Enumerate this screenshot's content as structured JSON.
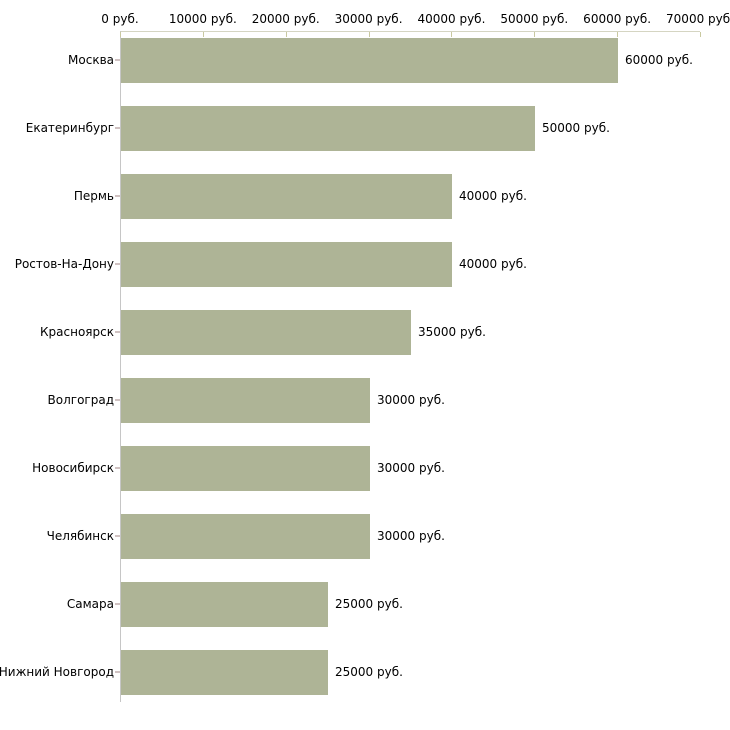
{
  "chart_data": {
    "type": "bar",
    "orientation": "horizontal",
    "title": "",
    "categories": [
      "Москва",
      "Екатеринбург",
      "Пермь",
      "Ростов-На-Дону",
      "Красноярск",
      "Волгоград",
      "Новосибирск",
      "Челябинск",
      "Самара",
      "Нижний Новгород"
    ],
    "values": [
      60000,
      50000,
      40000,
      40000,
      35000,
      30000,
      30000,
      30000,
      25000,
      25000
    ],
    "value_labels": [
      "60000 руб.",
      "50000 руб.",
      "40000 руб.",
      "40000 руб.",
      "35000 руб.",
      "30000 руб.",
      "30000 руб.",
      "30000 руб.",
      "25000 руб.",
      "25000 руб."
    ],
    "x_ticks": [
      0,
      10000,
      20000,
      30000,
      40000,
      50000,
      60000,
      70000
    ],
    "x_tick_labels": [
      "0 руб.",
      "10000 руб.",
      "20000 руб.",
      "30000 руб.",
      "40000 руб.",
      "50000 руб.",
      "60000 руб.",
      "70000 руб."
    ],
    "xlim": [
      0,
      70000
    ],
    "unit_suffix": " руб.",
    "grid": false,
    "legend": false,
    "colors": {
      "bar": "#aeb496",
      "x_axis_line": "#d5d5c2",
      "y_axis_line": "#c6c6c6",
      "x_tick": "#c9c9a0",
      "y_tick": "#d0c2c2",
      "text": "#000000",
      "background": "#ffffff"
    }
  }
}
